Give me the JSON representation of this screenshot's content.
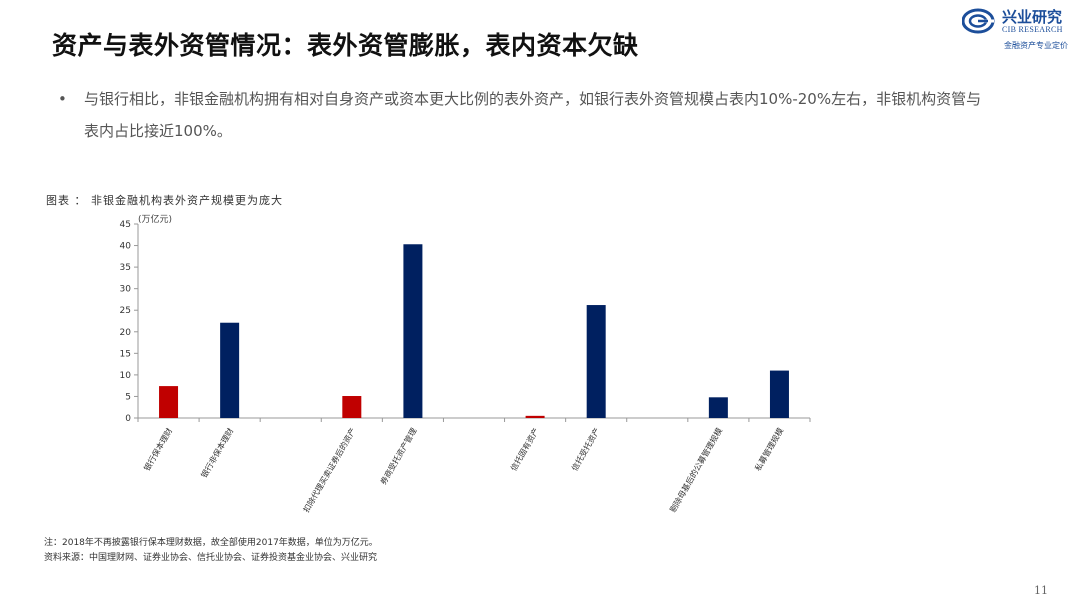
{
  "slide": {
    "title": "资产与表外资管情况：表外资管膨胀，表内资本欠缺",
    "bullet_marker": "•",
    "bullet_text": "与银行相比，非银金融机构拥有相对自身资产或资本更大比例的表外资产，如银行表外资管规模占表内10%-20%左右，非银机构资管与表内占比接近100%。",
    "page_number": "11"
  },
  "logo": {
    "name_cn": "兴业研究",
    "name_en": "CIB RESEARCH",
    "slogan": "金融资产专业定价"
  },
  "chart_data": {
    "type": "bar",
    "title": "图表 ： 非银金融机构表外资产规模更为庞大",
    "ylabel": "(万亿元)",
    "ylim": [
      0,
      45
    ],
    "yticks": [
      0,
      5,
      10,
      15,
      20,
      25,
      30,
      35,
      40,
      45
    ],
    "grid": false,
    "categories": [
      "银行保本理财",
      "银行非保本理财",
      "",
      "扣除代理买卖证券后的资产",
      "券商受托资产管理",
      "",
      "信托固有资产",
      "信托受托资产",
      "",
      "剔除母基后的公募管理规模",
      "私募管理规模"
    ],
    "values": [
      7.4,
      22.1,
      null,
      5.1,
      40.3,
      null,
      0.5,
      26.2,
      null,
      4.8,
      11.0
    ],
    "colors": [
      "#c00000",
      "#002060",
      null,
      "#c00000",
      "#002060",
      null,
      "#c00000",
      "#002060",
      null,
      "#002060",
      "#002060"
    ]
  },
  "footnotes": {
    "note": "注：2018年不再披露银行保本理财数据，故全部使用2017年数据，单位为万亿元。",
    "source": "资料来源：中国理财网、证券业协会、信托业协会、证券投资基金业协会、兴业研究"
  }
}
